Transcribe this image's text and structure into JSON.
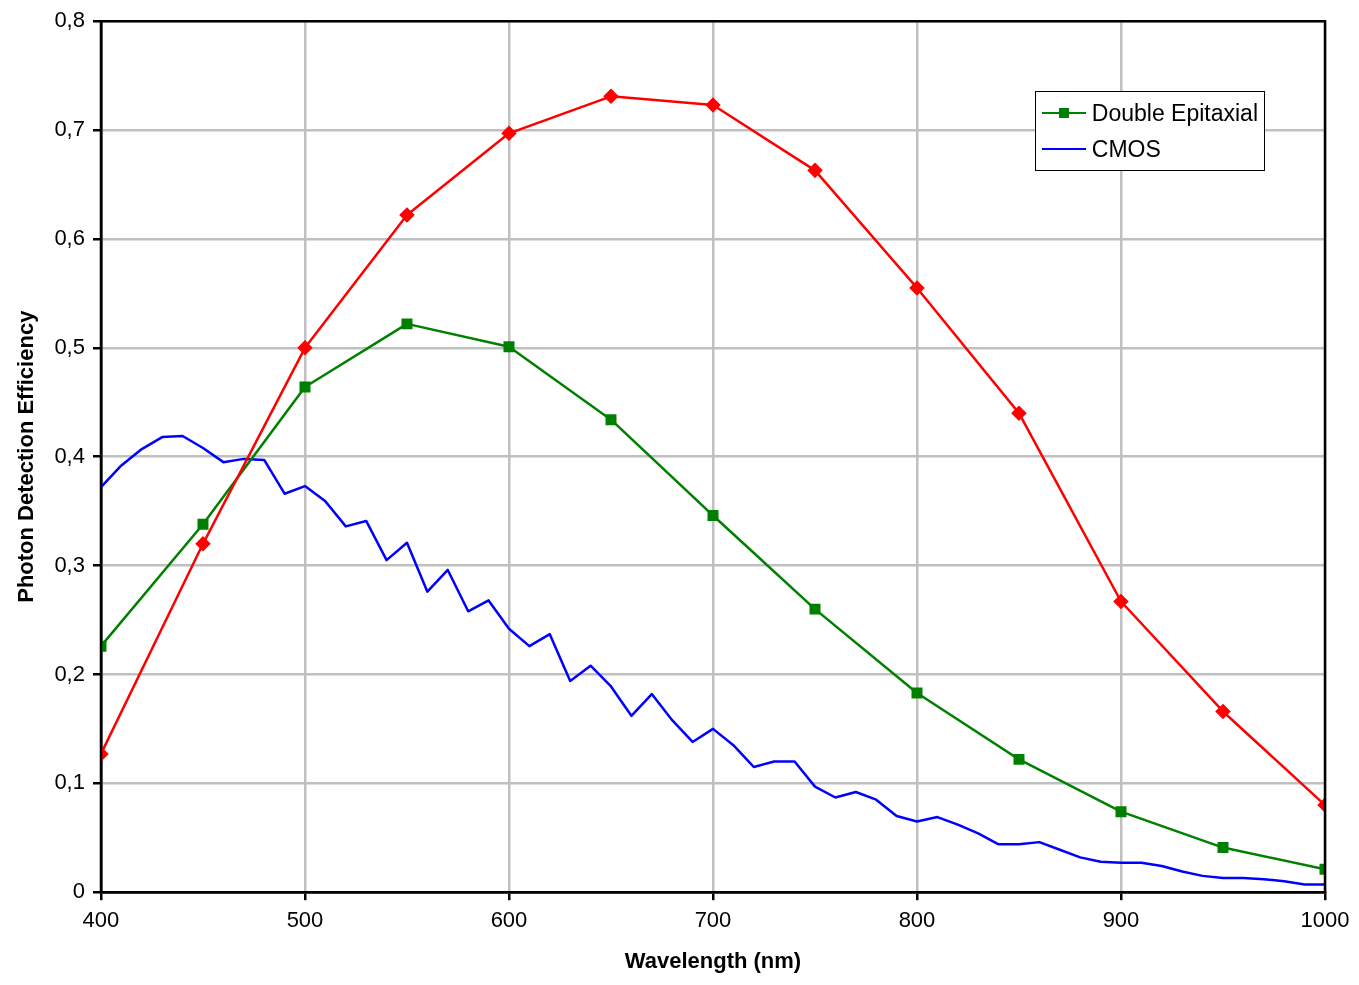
{
  "chart_data": {
    "type": "line",
    "xlabel": "Wavelength (nm)",
    "ylabel": "Photon Detection Efficiency",
    "xlim": [
      400,
      1000
    ],
    "xticks": [
      400,
      500,
      600,
      700,
      800,
      900,
      1000
    ],
    "ylim": [
      0,
      0.8
    ],
    "yticks": [
      0,
      {
        "value": 0.1,
        "label": "0,1"
      },
      {
        "value": 0.2,
        "label": "0,2"
      },
      {
        "value": 0.3,
        "label": "0,3"
      },
      {
        "value": 0.4,
        "label": "0,4"
      },
      {
        "value": 0.5,
        "label": "0,5"
      },
      {
        "value": 0.6,
        "label": "0,6"
      },
      {
        "value": 0.7,
        "label": "0,7"
      },
      {
        "value": 0.8,
        "label": "0,8"
      }
    ],
    "grid": true,
    "legend": "top right",
    "line_style": "solid",
    "series": [
      {
        "color": "#ff0000",
        "marker": "diamond",
        "x": [
          400,
          450,
          500,
          550,
          600,
          650,
          700,
          750,
          800,
          850,
          900,
          950,
          1000
        ],
        "values": [
          0.127,
          0.32,
          0.5,
          0.622,
          0.697,
          0.731,
          0.723,
          0.663,
          0.555,
          0.44,
          0.267,
          0.166,
          0.08
        ]
      },
      {
        "name": "Double Epitaxial",
        "color": "#008000",
        "marker": "square",
        "x": [
          400,
          450,
          500,
          550,
          600,
          650,
          700,
          750,
          800,
          850,
          900,
          950,
          1000
        ],
        "values": [
          0.226,
          0.338,
          0.464,
          0.522,
          0.501,
          0.434,
          0.346,
          0.26,
          0.183,
          0.122,
          0.074,
          0.041,
          0.021
        ]
      },
      {
        "name": "CMOS",
        "color": "#0000ff",
        "marker": "none",
        "x": [
          400,
          410,
          420,
          430,
          440,
          450,
          460,
          470,
          480,
          490,
          500,
          510,
          520,
          530,
          540,
          550,
          560,
          570,
          580,
          590,
          600,
          610,
          620,
          630,
          640,
          650,
          660,
          670,
          680,
          690,
          700,
          710,
          720,
          730,
          740,
          750,
          760,
          770,
          780,
          790,
          800,
          810,
          820,
          830,
          840,
          850,
          860,
          870,
          880,
          890,
          900,
          910,
          920,
          930,
          940,
          950,
          960,
          970,
          980,
          990,
          1000
        ],
        "values": [
          0.372,
          0.392,
          0.407,
          0.418,
          0.419,
          0.408,
          0.395,
          0.398,
          0.397,
          0.366,
          0.373,
          0.359,
          0.336,
          0.341,
          0.305,
          0.321,
          0.276,
          0.296,
          0.258,
          0.268,
          0.242,
          0.226,
          0.237,
          0.194,
          0.208,
          0.189,
          0.162,
          0.182,
          0.158,
          0.138,
          0.15,
          0.135,
          0.115,
          0.12,
          0.12,
          0.097,
          0.087,
          0.092,
          0.085,
          0.07,
          0.065,
          0.069,
          0.062,
          0.054,
          0.044,
          0.044,
          0.046,
          0.039,
          0.032,
          0.028,
          0.027,
          0.027,
          0.024,
          0.019,
          0.015,
          0.013,
          0.013,
          0.012,
          0.01,
          0.007,
          0.007
        ]
      }
    ]
  }
}
